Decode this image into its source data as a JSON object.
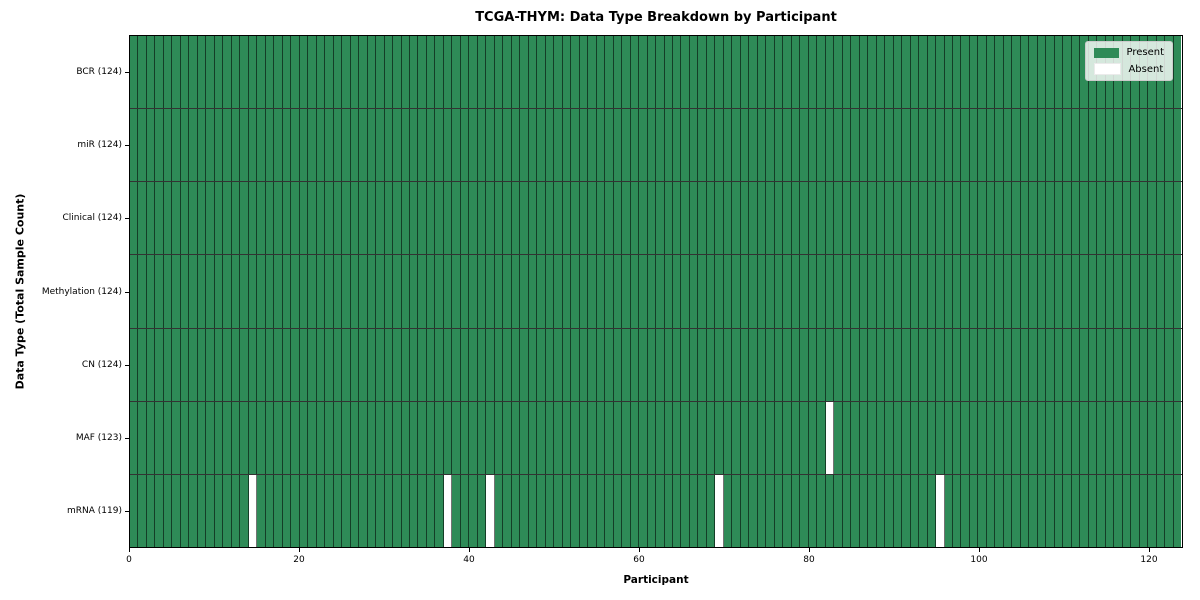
{
  "chart_data": {
    "type": "heatmap",
    "title": "TCGA-THYM: Data Type Breakdown by Participant",
    "xlabel": "Participant",
    "ylabel": "Data Type (Total Sample Count)",
    "x_ticks": [
      0,
      20,
      40,
      60,
      80,
      100,
      120
    ],
    "x_range": [
      0,
      124
    ],
    "n_participants": 124,
    "grid": true,
    "rows": [
      {
        "label": "BCR (124)",
        "present_count": 124,
        "absent_participants": []
      },
      {
        "label": "miR (124)",
        "present_count": 124,
        "absent_participants": []
      },
      {
        "label": "Clinical (124)",
        "present_count": 124,
        "absent_participants": []
      },
      {
        "label": "Methylation (124)",
        "present_count": 124,
        "absent_participants": []
      },
      {
        "label": "CN (124)",
        "present_count": 124,
        "absent_participants": []
      },
      {
        "label": "MAF (123)",
        "present_count": 123,
        "absent_participants": [
          82
        ]
      },
      {
        "label": "mRNA (119)",
        "present_count": 119,
        "absent_participants": [
          14,
          37,
          42,
          69,
          95
        ]
      }
    ],
    "legend": {
      "position": "upper right",
      "entries": [
        {
          "label": "Present",
          "color": "#2e8b57"
        },
        {
          "label": "Absent",
          "color": "#ffffff"
        }
      ]
    },
    "colors": {
      "present": "#2e8b57",
      "absent": "#ffffff",
      "cell_border": "rgba(0,0,0,0.55)",
      "row_border": "rgba(0,0,0,0.8)",
      "axes": "#000000"
    }
  }
}
